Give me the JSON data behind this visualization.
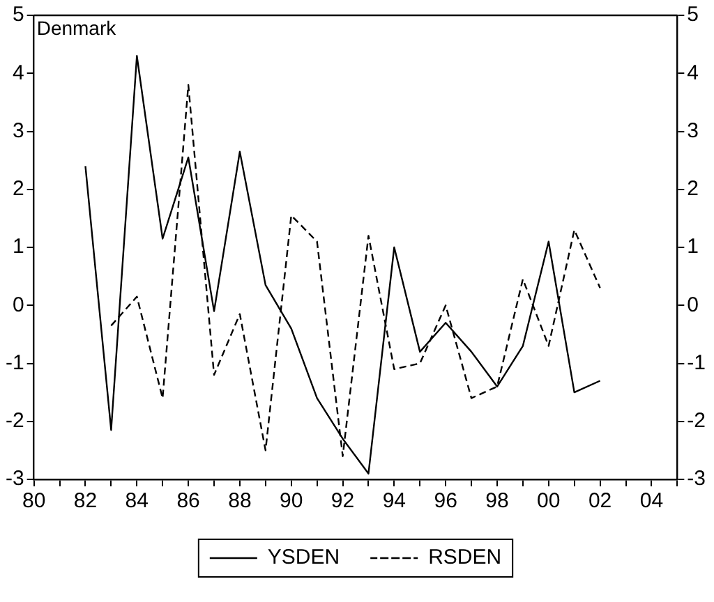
{
  "chart_data": {
    "type": "line",
    "title": "Denmark",
    "series": [
      {
        "name": "YSDEN",
        "color": "#000000",
        "line_style": "solid",
        "x": [
          1982,
          1983,
          1984,
          1985,
          1986,
          1987,
          1988,
          1989,
          1990,
          1991,
          1992,
          1993,
          1994,
          1995,
          1996,
          1997,
          1998,
          1999,
          2000,
          2001,
          2002
        ],
        "values": [
          2.4,
          -2.15,
          4.3,
          1.15,
          2.55,
          -0.1,
          2.65,
          0.35,
          -0.4,
          -1.6,
          -2.3,
          -2.9,
          1.0,
          -0.8,
          -0.3,
          -0.8,
          -1.4,
          -0.7,
          1.1,
          -1.5,
          -1.3
        ]
      },
      {
        "name": "RSDEN",
        "color": "#000000",
        "line_style": "dashed",
        "x": [
          1983,
          1984,
          1985,
          1986,
          1987,
          1988,
          1989,
          1990,
          1991,
          1992,
          1993,
          1994,
          1995,
          1996,
          1997,
          1998,
          1999,
          2000,
          2001,
          2002
        ],
        "values": [
          -0.35,
          0.15,
          -1.6,
          3.8,
          -1.2,
          -0.15,
          -2.5,
          1.55,
          1.1,
          -2.6,
          1.2,
          -1.1,
          -1.0,
          0.0,
          -1.6,
          -1.4,
          0.45,
          -0.7,
          1.3,
          0.3
        ]
      }
    ],
    "xlim": [
      1980,
      2005
    ],
    "xticks": [
      {
        "value": 1980,
        "label": "80"
      },
      {
        "value": 1981,
        "label": null
      },
      {
        "value": 1982,
        "label": "82"
      },
      {
        "value": 1983,
        "label": null
      },
      {
        "value": 1984,
        "label": "84"
      },
      {
        "value": 1985,
        "label": null
      },
      {
        "value": 1986,
        "label": "86"
      },
      {
        "value": 1987,
        "label": null
      },
      {
        "value": 1988,
        "label": "88"
      },
      {
        "value": 1989,
        "label": null
      },
      {
        "value": 1990,
        "label": "90"
      },
      {
        "value": 1991,
        "label": null
      },
      {
        "value": 1992,
        "label": "92"
      },
      {
        "value": 1993,
        "label": null
      },
      {
        "value": 1994,
        "label": "94"
      },
      {
        "value": 1995,
        "label": null
      },
      {
        "value": 1996,
        "label": "96"
      },
      {
        "value": 1997,
        "label": null
      },
      {
        "value": 1998,
        "label": "98"
      },
      {
        "value": 1999,
        "label": null
      },
      {
        "value": 2000,
        "label": "00"
      },
      {
        "value": 2001,
        "label": null
      },
      {
        "value": 2002,
        "label": "02"
      },
      {
        "value": 2003,
        "label": null
      },
      {
        "value": 2004,
        "label": "04"
      },
      {
        "value": 2005,
        "label": null
      }
    ],
    "ylim": [
      -3,
      5
    ],
    "yticks": [
      -3,
      -2,
      -1,
      0,
      1,
      2,
      3,
      4,
      5
    ],
    "y2lim": [
      -3,
      5
    ],
    "y2ticks": [
      -3,
      -2,
      -1,
      0,
      1,
      2,
      3,
      4,
      5
    ],
    "grid": false,
    "legend": "bottom",
    "marker": "none"
  }
}
